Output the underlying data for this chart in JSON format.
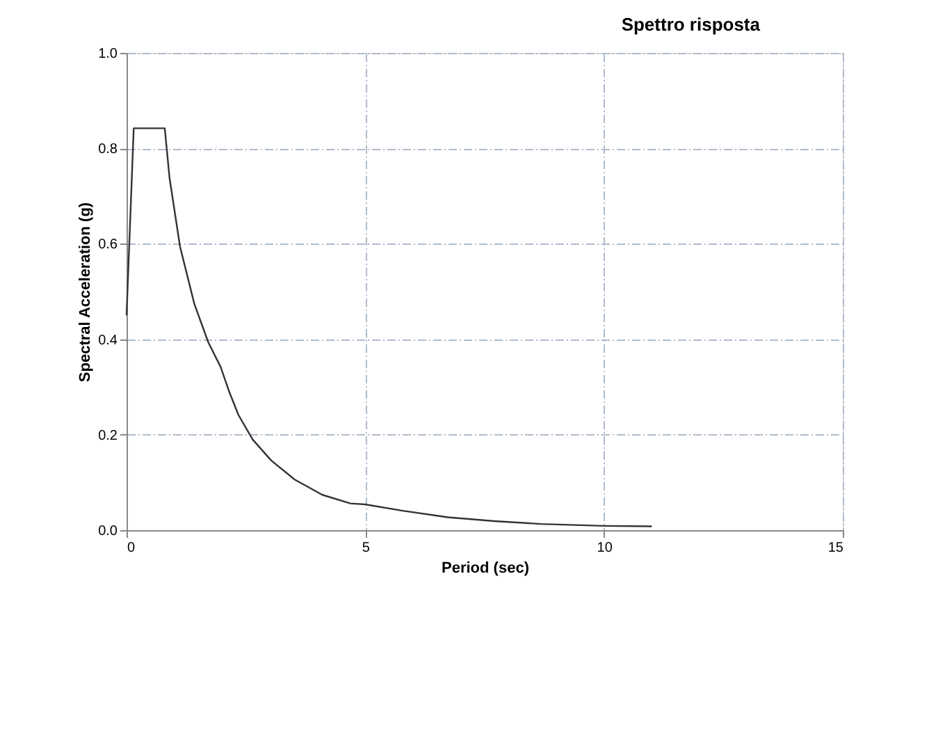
{
  "chart_data": {
    "type": "line",
    "title": "Spettro risposta",
    "xlabel": "Period (sec)",
    "ylabel": "Spectral Acceleration (g)",
    "x": [
      0,
      0.15,
      0.8,
      0.9,
      1.12,
      1.42,
      1.71,
      1.97,
      2.15,
      2.34,
      2.64,
      3.03,
      3.52,
      4.1,
      4.69,
      5.0,
      5.76,
      6.73,
      7.7,
      8.68,
      10.0,
      11.0
    ],
    "series": [
      {
        "color": "#333333",
        "values": [
          0.45,
          0.842,
          0.842,
          0.738,
          0.594,
          0.474,
          0.394,
          0.342,
          0.29,
          0.242,
          0.19,
          0.146,
          0.106,
          0.074,
          0.056,
          0.054,
          0.041,
          0.027,
          0.019,
          0.013,
          0.009,
          0.008
        ]
      }
    ],
    "xlim": [
      0,
      15
    ],
    "xticks": [
      0,
      5,
      10,
      15
    ],
    "ylim": [
      0,
      1
    ],
    "yticks": [
      {
        "value": 0,
        "label": "0.0"
      },
      {
        "value": 0.2,
        "label": "0.2"
      },
      {
        "value": 0.4,
        "label": "0.4"
      },
      {
        "value": 0.6,
        "label": "0.6"
      },
      {
        "value": 0.8,
        "label": "0.8"
      },
      {
        "value": 1,
        "label": "1.0"
      }
    ],
    "grid": true,
    "marker": "none",
    "line_style": "solid"
  }
}
